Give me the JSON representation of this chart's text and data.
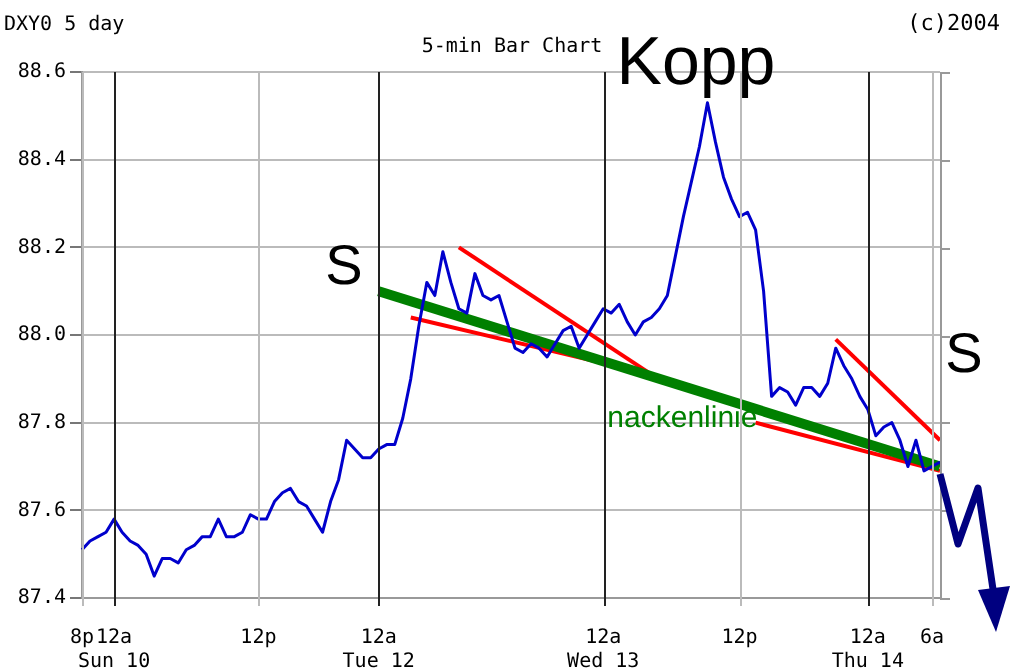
{
  "chart_data": {
    "type": "line",
    "title": "5-min Bar Chart",
    "subtitle": "DXY0 5 day",
    "annotations": [
      "S",
      "Kopp",
      "S",
      "(c)2004"
    ],
    "categories": [
      "8p",
      null,
      null,
      null,
      "12a Sun 10",
      null,
      null,
      null,
      null,
      null,
      null,
      null,
      null,
      null,
      null,
      null,
      null,
      null,
      null,
      null,
      null,
      null,
      "12p",
      null,
      null,
      null,
      null,
      null,
      null,
      null,
      null,
      null,
      null,
      null,
      null,
      null,
      null,
      "12a Tue 12",
      null,
      null,
      null,
      null,
      null,
      null,
      null,
      null,
      null,
      null,
      null,
      null,
      null,
      null,
      null,
      null,
      null,
      null,
      null,
      null,
      null,
      null,
      null,
      null,
      null,
      null,
      null,
      "12a Wed 13",
      null,
      null,
      null,
      null,
      null,
      null,
      null,
      null,
      null,
      null,
      null,
      null,
      null,
      null,
      null,
      null,
      "12p",
      null,
      null,
      null,
      null,
      null,
      null,
      null,
      null,
      null,
      null,
      null,
      null,
      null,
      null,
      null,
      "12a Thu 14",
      null,
      null,
      null,
      null,
      null,
      null,
      null,
      "6a",
      null
    ],
    "series": [
      {
        "color": "#0000cc",
        "values": [
          87.51,
          87.53,
          87.54,
          87.55,
          87.58,
          87.55,
          87.53,
          87.52,
          87.5,
          87.45,
          87.49,
          87.49,
          87.48,
          87.51,
          87.52,
          87.54,
          87.54,
          87.58,
          87.54,
          87.54,
          87.55,
          87.59,
          87.58,
          87.58,
          87.62,
          87.64,
          87.65,
          87.62,
          87.61,
          87.58,
          87.55,
          87.62,
          87.67,
          87.76,
          87.74,
          87.72,
          87.72,
          87.74,
          87.75,
          87.75,
          87.81,
          87.9,
          88.02,
          88.12,
          88.09,
          88.19,
          88.12,
          88.06,
          88.05,
          88.14,
          88.09,
          88.08,
          88.09,
          88.03,
          87.97,
          87.96,
          87.98,
          87.97,
          87.95,
          87.98,
          88.01,
          88.02,
          87.97,
          88.0,
          88.03,
          88.06,
          88.05,
          88.07,
          88.03,
          88.0,
          88.03,
          88.04,
          88.06,
          88.09,
          88.18,
          88.27,
          88.35,
          88.43,
          88.53,
          88.44,
          88.36,
          88.31,
          88.27,
          88.28,
          88.24,
          88.1,
          87.86,
          87.88,
          87.87,
          87.84,
          87.88,
          87.88,
          87.86,
          87.89,
          87.97,
          87.93,
          87.9,
          87.86,
          87.83,
          87.77,
          87.79,
          87.8,
          87.76,
          87.7,
          87.76,
          87.69,
          87.7,
          87.71
        ]
      },
      {
        "name": "nackenlinie",
        "color": "#008000",
        "values": [
          null,
          null,
          null,
          null,
          null,
          null,
          null,
          null,
          null,
          null,
          null,
          null,
          null,
          null,
          null,
          null,
          null,
          null,
          null,
          null,
          null,
          null,
          null,
          null,
          null,
          null,
          null,
          null,
          null,
          null,
          null,
          null,
          null,
          null,
          null,
          null,
          null,
          88.1,
          null,
          null,
          null,
          null,
          null,
          null,
          null,
          null,
          null,
          null,
          null,
          null,
          null,
          null,
          null,
          null,
          null,
          null,
          null,
          null,
          null,
          null,
          null,
          null,
          null,
          null,
          null,
          null,
          null,
          null,
          null,
          null,
          null,
          null,
          null,
          null,
          null,
          null,
          null,
          null,
          null,
          null,
          null,
          null,
          null,
          null,
          null,
          null,
          null,
          null,
          null,
          null,
          null,
          null,
          null,
          null,
          null,
          null,
          null,
          null,
          null,
          null,
          null,
          null,
          null,
          null,
          null,
          null,
          null,
          87.7
        ]
      },
      {
        "color": "#ff0000",
        "values": [
          null,
          null,
          null,
          null,
          null,
          null,
          null,
          null,
          null,
          null,
          null,
          null,
          null,
          null,
          null,
          null,
          null,
          null,
          null,
          null,
          null,
          null,
          null,
          null,
          null,
          null,
          null,
          null,
          null,
          null,
          null,
          null,
          null,
          null,
          null,
          null,
          null,
          null,
          null,
          null,
          null,
          null,
          null,
          null,
          null,
          null,
          null,
          88.2,
          null,
          null,
          null,
          null,
          null,
          null,
          null,
          null,
          null,
          null,
          null,
          null,
          null,
          null,
          null,
          null,
          null,
          null,
          null,
          null,
          null,
          null,
          null,
          87.91,
          null,
          null,
          null,
          null,
          null,
          null,
          null,
          null,
          null,
          null,
          null,
          null,
          null,
          null,
          null,
          null,
          null,
          null,
          null,
          null,
          null,
          null,
          null,
          null,
          null,
          null,
          null,
          null,
          null,
          null,
          null,
          null,
          null,
          null,
          null,
          null
        ]
      },
      {
        "color": "#ff0000",
        "values": [
          null,
          null,
          null,
          null,
          null,
          null,
          null,
          null,
          null,
          null,
          null,
          null,
          null,
          null,
          null,
          null,
          null,
          null,
          null,
          null,
          null,
          null,
          null,
          null,
          null,
          null,
          null,
          null,
          null,
          null,
          null,
          null,
          null,
          null,
          null,
          null,
          null,
          null,
          null,
          null,
          null,
          88.04,
          null,
          null,
          null,
          null,
          null,
          null,
          null,
          null,
          null,
          null,
          null,
          null,
          null,
          null,
          null,
          null,
          null,
          null,
          null,
          null,
          null,
          null,
          null,
          null,
          null,
          null,
          null,
          null,
          null,
          87.91,
          null,
          null,
          null,
          null,
          null,
          null,
          null,
          null,
          null,
          null,
          null,
          null,
          null,
          null,
          null,
          null,
          null,
          null,
          null,
          null,
          null,
          null,
          null,
          null,
          null,
          null,
          null,
          null,
          null,
          null,
          null,
          null,
          null,
          null,
          null,
          null
        ]
      },
      {
        "color": "#ff0000",
        "values": [
          null,
          null,
          null,
          null,
          null,
          null,
          null,
          null,
          null,
          null,
          null,
          null,
          null,
          null,
          null,
          null,
          null,
          null,
          null,
          null,
          null,
          null,
          null,
          null,
          null,
          null,
          null,
          null,
          null,
          null,
          null,
          null,
          null,
          null,
          null,
          null,
          null,
          null,
          null,
          null,
          null,
          null,
          null,
          null,
          null,
          null,
          null,
          null,
          null,
          null,
          null,
          null,
          null,
          null,
          null,
          null,
          null,
          null,
          null,
          null,
          null,
          null,
          null,
          null,
          null,
          null,
          null,
          null,
          null,
          null,
          null,
          null,
          null,
          null,
          null,
          null,
          null,
          null,
          null,
          null,
          null,
          null,
          null,
          null,
          null,
          null,
          null,
          null,
          null,
          null,
          null,
          null,
          null,
          null,
          87.99,
          null,
          null,
          null,
          null,
          null,
          null,
          null,
          null,
          null,
          null,
          null,
          null,
          87.76
        ]
      },
      {
        "color": "#ff0000",
        "values": [
          null,
          null,
          null,
          null,
          null,
          null,
          null,
          null,
          null,
          null,
          null,
          null,
          null,
          null,
          null,
          null,
          null,
          null,
          null,
          null,
          null,
          null,
          null,
          null,
          null,
          null,
          null,
          null,
          null,
          null,
          null,
          null,
          null,
          null,
          null,
          null,
          null,
          null,
          null,
          null,
          null,
          null,
          null,
          null,
          null,
          null,
          null,
          null,
          null,
          null,
          null,
          null,
          null,
          null,
          null,
          null,
          null,
          null,
          null,
          null,
          null,
          null,
          null,
          null,
          null,
          null,
          null,
          null,
          null,
          null,
          null,
          null,
          null,
          null,
          null,
          null,
          null,
          null,
          null,
          null,
          null,
          null,
          null,
          null,
          87.8,
          null,
          null,
          null,
          null,
          null,
          null,
          null,
          null,
          null,
          null,
          null,
          null,
          null,
          null,
          null,
          null,
          null,
          null,
          null,
          null,
          null,
          null,
          87.69
        ]
      }
    ],
    "ylim": [
      87.4,
      88.6
    ],
    "yticks": [
      87.4,
      87.6,
      87.8,
      {
        "value": 88,
        "label": "88.0"
      },
      88.2,
      88.4,
      88.6
    ],
    "grid": true,
    "legend": false,
    "marker": "none",
    "line_style": "solid"
  }
}
